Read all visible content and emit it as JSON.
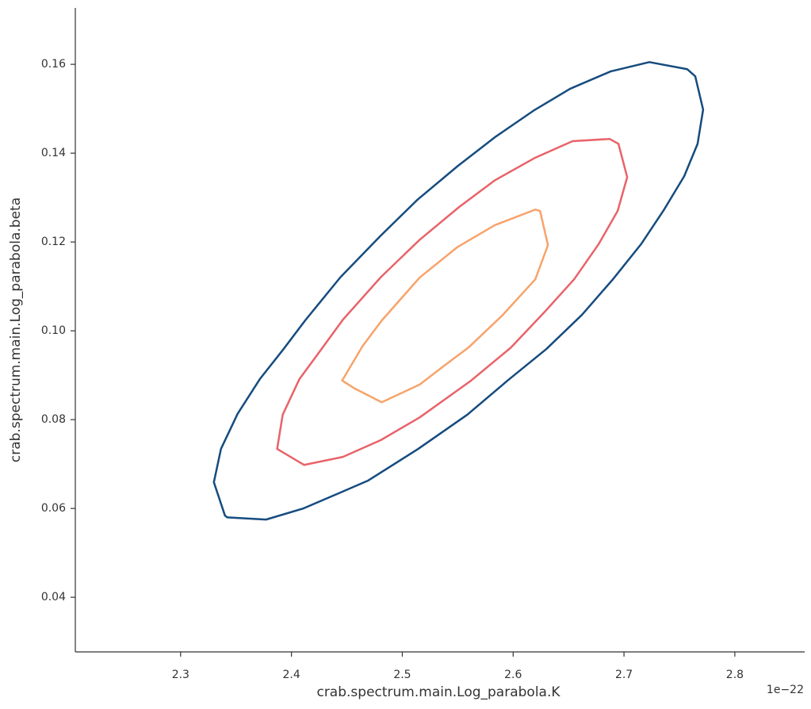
{
  "chart_data": {
    "type": "contour",
    "xlabel": "crab.spectrum.main.Log_parabola.K",
    "ylabel": "crab.spectrum.main.Log_parabola.beta",
    "x_offset_text": "1e−22",
    "xlim": [
      2.205,
      2.863
    ],
    "ylim": [
      0.0277,
      0.1727
    ],
    "xticks": [
      2.3,
      2.4,
      2.5,
      2.6,
      2.7,
      2.8
    ],
    "yticks": [
      0.04,
      0.06,
      0.08,
      {
        "value": 0.1,
        "label": "0.10"
      },
      0.12,
      0.14,
      0.16
    ],
    "lines": [
      {
        "color": "#154c7f",
        "x": [
          2.7229,
          2.7571,
          2.7643,
          2.7714,
          2.7664,
          2.7543,
          2.7357,
          2.7157,
          2.69,
          2.6621,
          2.63,
          2.595,
          2.5586,
          2.5143,
          2.4693,
          2.4443,
          2.4107,
          2.3771,
          2.3421,
          2.34,
          2.33,
          2.3364,
          2.3514,
          2.3714,
          2.3929,
          2.4129,
          2.4443,
          2.48,
          2.5136,
          2.55,
          2.5836,
          2.6186,
          2.6514,
          2.6879
        ],
        "y": [
          0.1605,
          0.1589,
          0.1573,
          0.1498,
          0.1421,
          0.1348,
          0.1271,
          0.1196,
          0.1116,
          0.1036,
          0.0959,
          0.0888,
          0.0811,
          0.0734,
          0.0663,
          0.0636,
          0.06,
          0.0575,
          0.058,
          0.0584,
          0.0659,
          0.0734,
          0.0813,
          0.0891,
          0.0959,
          0.1025,
          0.1121,
          0.1213,
          0.1295,
          0.1371,
          0.1436,
          0.1496,
          0.1545,
          0.1584
        ]
      },
      {
        "color": "#e8636a",
        "x": [
          2.6536,
          2.6871,
          2.695,
          2.7029,
          2.6943,
          2.6771,
          2.655,
          2.6286,
          2.5979,
          2.5621,
          2.5157,
          2.4807,
          2.4464,
          2.4114,
          2.3871,
          2.3921,
          2.4071,
          2.4271,
          2.4464,
          2.4807,
          2.5157,
          2.5514,
          2.5836,
          2.6193
        ],
        "y": [
          0.1427,
          0.1432,
          0.1421,
          0.1346,
          0.127,
          0.1195,
          0.1116,
          0.1043,
          0.0962,
          0.0888,
          0.0805,
          0.0754,
          0.0716,
          0.0698,
          0.0734,
          0.0811,
          0.0891,
          0.0959,
          0.1025,
          0.1121,
          0.1205,
          0.1279,
          0.1339,
          0.1389
        ]
      },
      {
        "color": "#f7a36b",
        "x": [
          2.4457,
          2.4643,
          2.4814,
          2.5157,
          2.55,
          2.5836,
          2.62,
          2.6243,
          2.6314,
          2.62,
          2.59,
          2.56,
          2.5371,
          2.5157,
          2.4814,
          2.4571
        ],
        "y": [
          0.0888,
          0.0966,
          0.1023,
          0.112,
          0.1189,
          0.1238,
          0.1273,
          0.127,
          0.1193,
          0.1116,
          0.1034,
          0.0963,
          0.092,
          0.0879,
          0.0839,
          0.087
        ]
      }
    ]
  }
}
